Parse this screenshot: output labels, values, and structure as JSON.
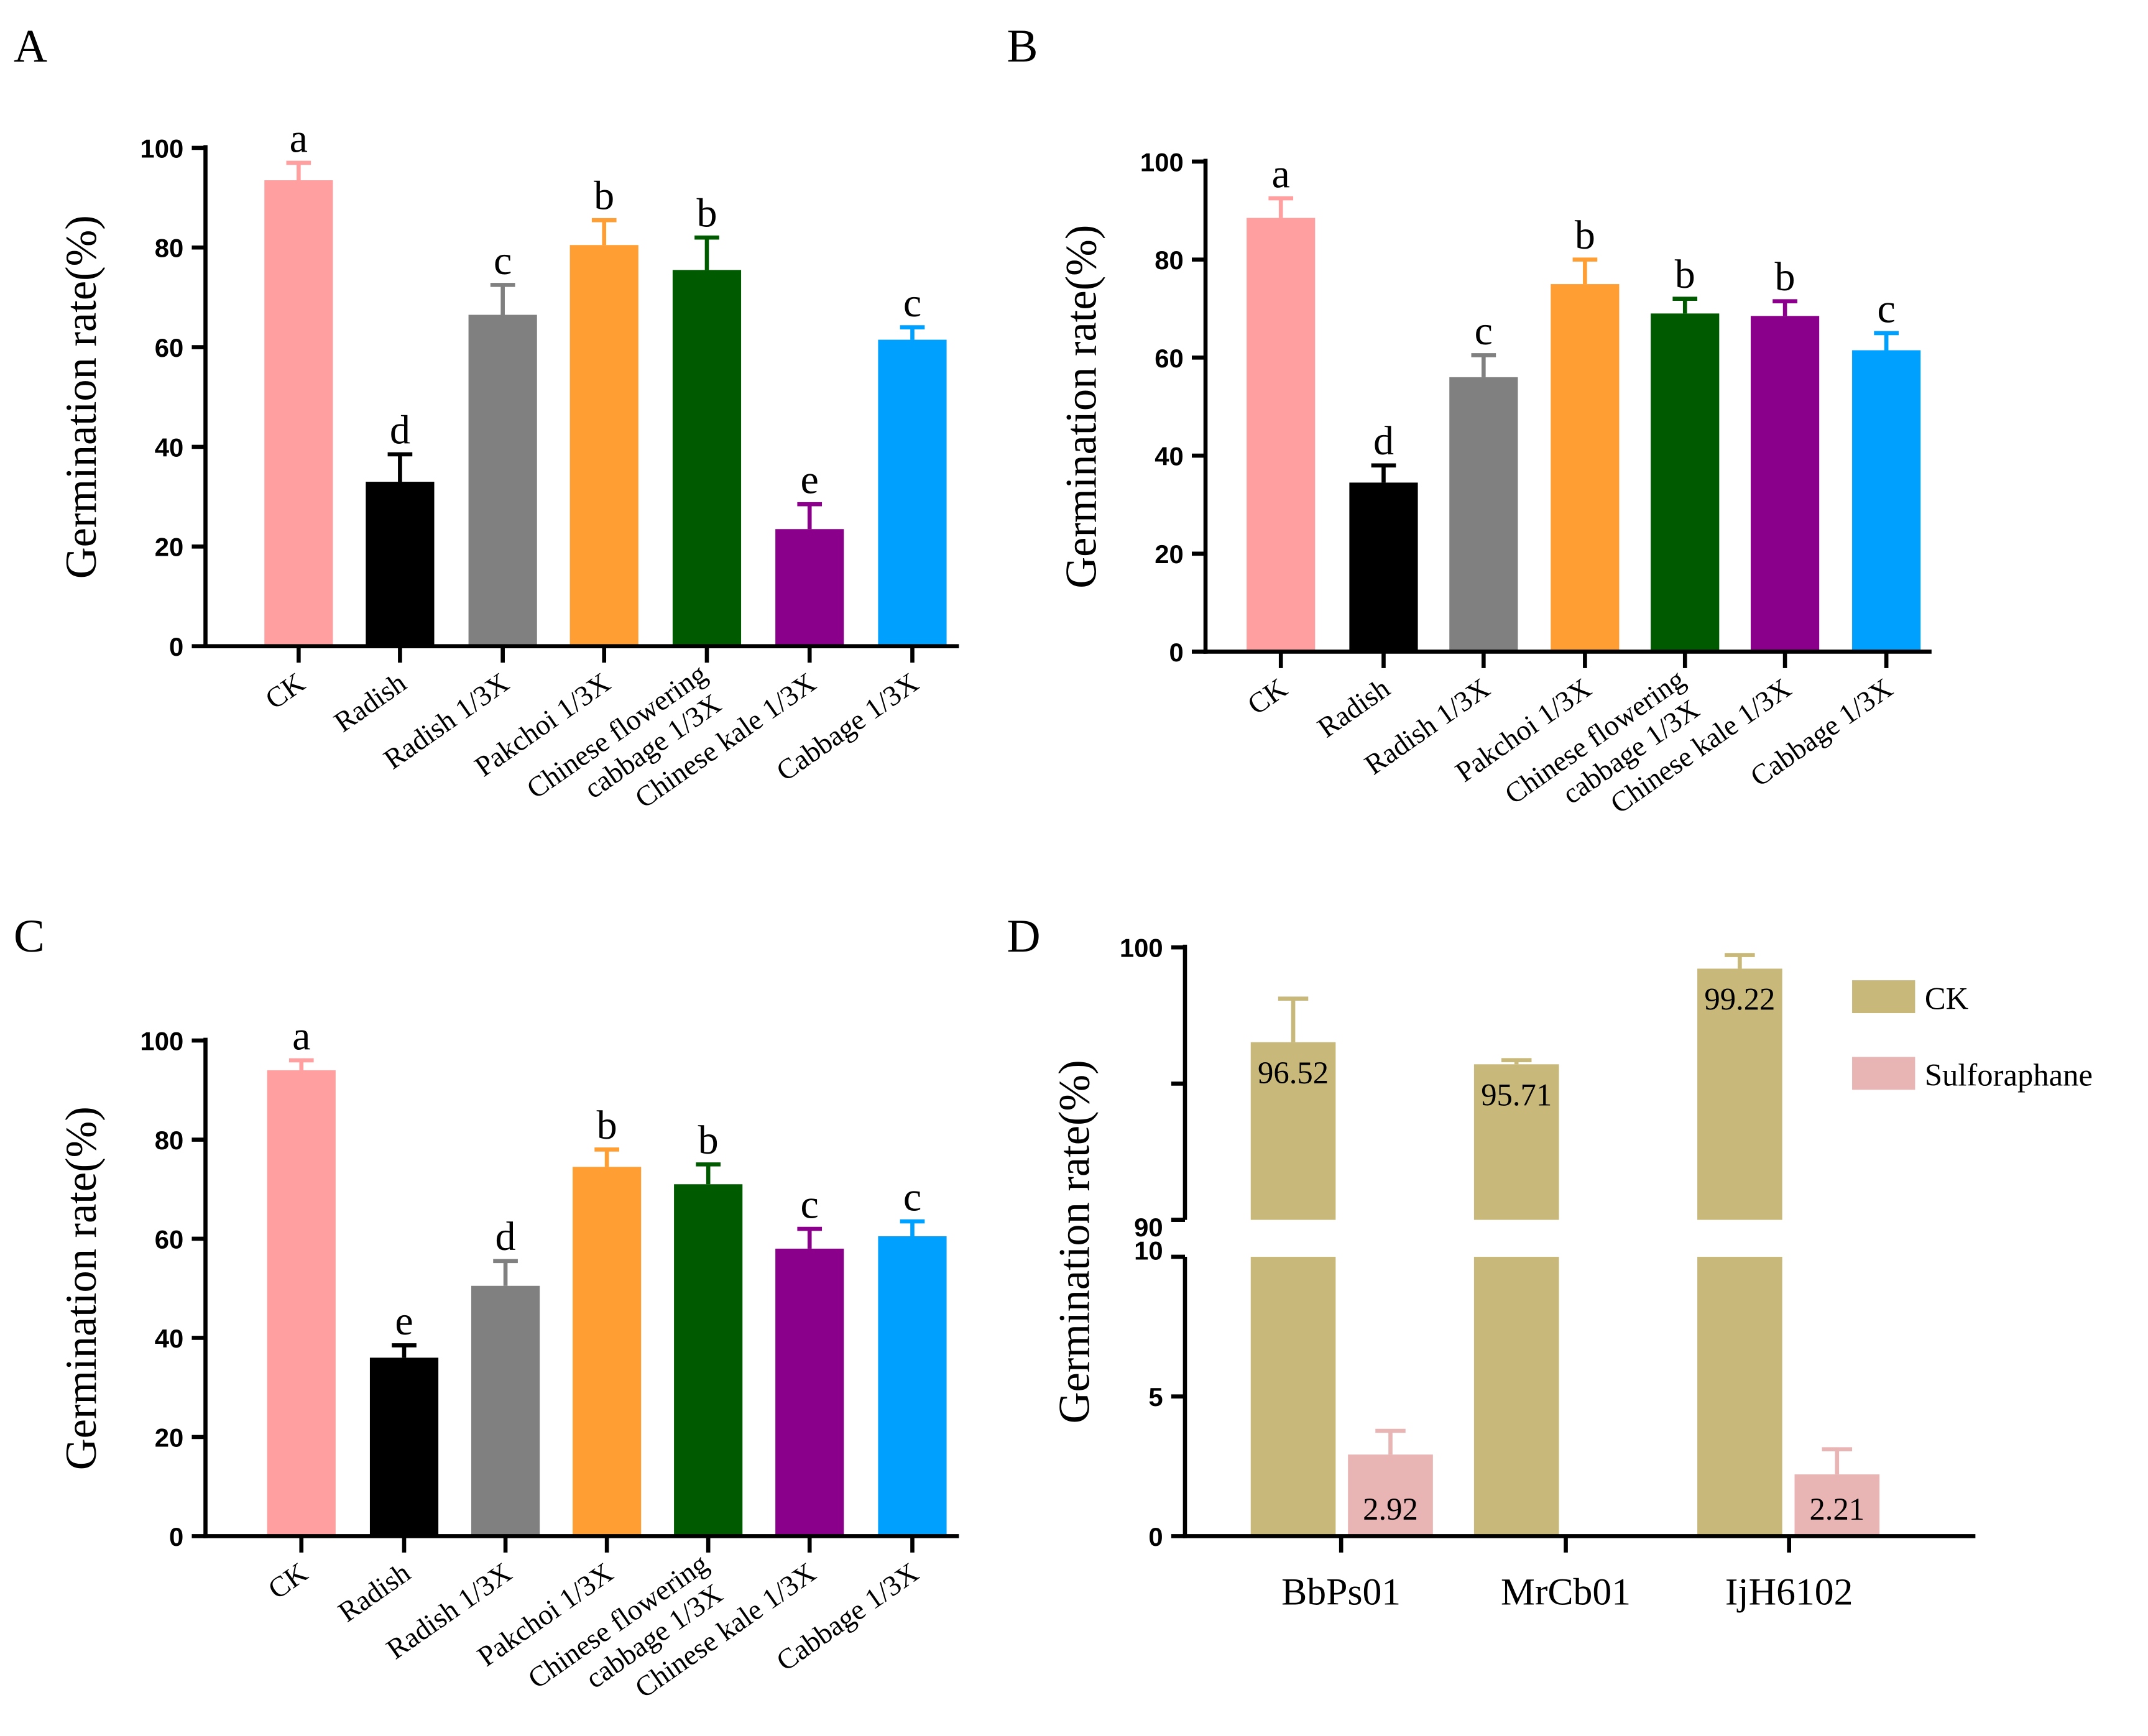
{
  "chart_data": [
    {
      "type": "bar",
      "panel": "A",
      "ylabel": "Germination rate(%)",
      "ylim": [
        0,
        100
      ],
      "yticks": [
        0,
        20,
        40,
        60,
        80,
        100
      ],
      "categories": [
        "CK",
        "Radish",
        "Radish 1/3X",
        "Pakchoi 1/3X",
        "Chinese flowering\ncabbage 1/3X",
        "Chinese kale 1/3X",
        "Cabbage 1/3X"
      ],
      "values": [
        93.5,
        33,
        66.5,
        80.5,
        75.5,
        23.5,
        61.5
      ],
      "errors": [
        3.5,
        5.5,
        6,
        5,
        6.5,
        5,
        2.5
      ],
      "letters": [
        "a",
        "d",
        "c",
        "b",
        "b",
        "e",
        "c"
      ],
      "colors": [
        "#ff9f9f",
        "#000000",
        "#808080",
        "#ff9f33",
        "#005a00",
        "#8b008b",
        "#00a0ff"
      ]
    },
    {
      "type": "bar",
      "panel": "B",
      "ylabel": "Germination rate(%)",
      "ylim": [
        0,
        100
      ],
      "yticks": [
        0,
        20,
        40,
        60,
        80,
        100
      ],
      "categories": [
        "CK",
        "Radish",
        "Radish 1/3X",
        "Pakchoi 1/3X",
        "Chinese flowering\ncabbage 1/3X",
        "Chinese kale 1/3X",
        "Cabbage 1/3X"
      ],
      "values": [
        88.5,
        34.5,
        56,
        75,
        69,
        68.5,
        61.5
      ],
      "errors": [
        4,
        3.5,
        4.5,
        5,
        3,
        3,
        3.5
      ],
      "letters": [
        "a",
        "d",
        "c",
        "b",
        "b",
        "b",
        "c"
      ],
      "colors": [
        "#ff9f9f",
        "#000000",
        "#808080",
        "#ff9f33",
        "#005a00",
        "#8b008b",
        "#00a0ff"
      ]
    },
    {
      "type": "bar",
      "panel": "C",
      "ylabel": "Germination rate(%)",
      "ylim": [
        0,
        100
      ],
      "yticks": [
        0,
        20,
        40,
        60,
        80,
        100
      ],
      "categories": [
        "CK",
        "Radish",
        "Radish 1/3X",
        "Pakchoi 1/3X",
        "Chinese flowering\ncabbage 1/3X",
        "Chinese kale 1/3X",
        "Cabbage 1/3X"
      ],
      "values": [
        94,
        36,
        50.5,
        74.5,
        71,
        58,
        60.5
      ],
      "errors": [
        2,
        2.5,
        5,
        3.5,
        4,
        4,
        3
      ],
      "letters": [
        "a",
        "e",
        "d",
        "b",
        "b",
        "c",
        "c"
      ],
      "colors": [
        "#ff9f9f",
        "#000000",
        "#808080",
        "#ff9f33",
        "#005a00",
        "#8b008b",
        "#00a0ff"
      ]
    },
    {
      "type": "bar",
      "panel": "D",
      "ylabel": "Germination rate(%)",
      "ylim": [
        0,
        100
      ],
      "axis_break": [
        10,
        90
      ],
      "yticks": [
        0,
        5,
        10,
        90,
        100
      ],
      "categories": [
        "BbPs01",
        "MrCb01",
        "IjH6102"
      ],
      "legend_position": "top-right",
      "series": [
        {
          "name": "CK",
          "color": "#c8b97a",
          "values": [
            96.52,
            95.71,
            99.22
          ],
          "errors": [
            1.6,
            0.15,
            0.5
          ],
          "labels": [
            "96.52",
            "95.71",
            "99.22"
          ]
        },
        {
          "name": "Sulforaphane",
          "color": "#e8b4b4",
          "values": [
            2.92,
            0,
            2.21
          ],
          "errors": [
            0.85,
            0,
            0.9
          ],
          "labels": [
            "2.92",
            "",
            "2.21"
          ]
        }
      ]
    }
  ]
}
